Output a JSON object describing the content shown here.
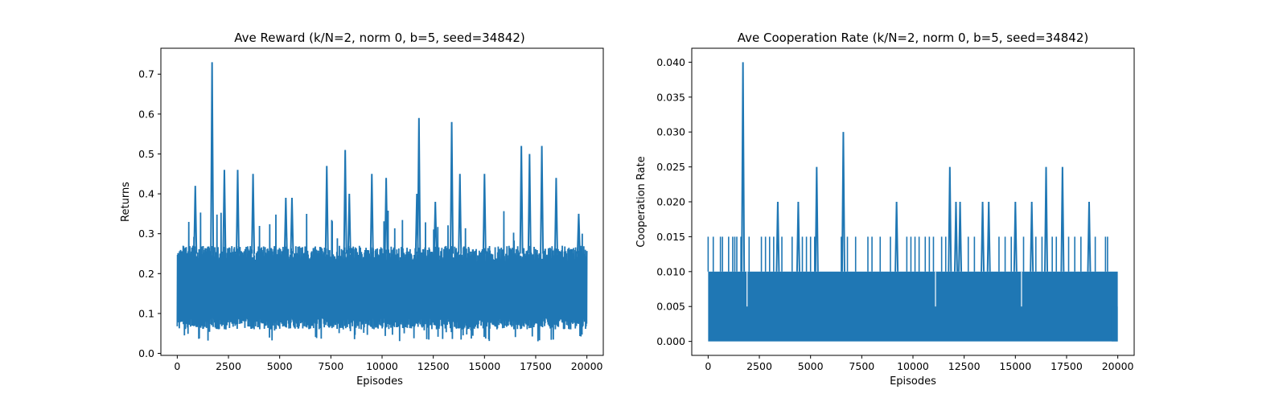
{
  "chart_data": [
    {
      "type": "line",
      "title": "Ave Reward (k/N=2, norm 0, b=5, seed=34842)",
      "xlabel": "Episodes",
      "ylabel": "Returns",
      "xlim": [
        -800,
        20800
      ],
      "ylim": [
        -0.005,
        0.765
      ],
      "xticks": [
        0,
        2500,
        5000,
        7500,
        10000,
        12500,
        15000,
        17500,
        20000
      ],
      "yticks": [
        0.0,
        0.1,
        0.2,
        0.3,
        0.4,
        0.5,
        0.6,
        0.7
      ],
      "ytick_labels": [
        "0.0",
        "0.1",
        "0.2",
        "0.3",
        "0.4",
        "0.5",
        "0.6",
        "0.7"
      ],
      "series_color": "#1f77b4",
      "n_points": 20000,
      "band": {
        "typical_low": 0.09,
        "typical_high": 0.24,
        "min": 0.03,
        "ceiling_mean": 0.25
      },
      "peaks": [
        {
          "x": 880,
          "y": 0.42
        },
        {
          "x": 1700,
          "y": 0.73
        },
        {
          "x": 2300,
          "y": 0.46
        },
        {
          "x": 2950,
          "y": 0.46
        },
        {
          "x": 3700,
          "y": 0.45
        },
        {
          "x": 5300,
          "y": 0.39
        },
        {
          "x": 5600,
          "y": 0.39
        },
        {
          "x": 7300,
          "y": 0.47
        },
        {
          "x": 8200,
          "y": 0.51
        },
        {
          "x": 8400,
          "y": 0.4
        },
        {
          "x": 9500,
          "y": 0.45
        },
        {
          "x": 10200,
          "y": 0.44
        },
        {
          "x": 11700,
          "y": 0.4
        },
        {
          "x": 11800,
          "y": 0.59
        },
        {
          "x": 12600,
          "y": 0.38
        },
        {
          "x": 13400,
          "y": 0.58
        },
        {
          "x": 13800,
          "y": 0.45
        },
        {
          "x": 15000,
          "y": 0.45
        },
        {
          "x": 16800,
          "y": 0.52
        },
        {
          "x": 17200,
          "y": 0.5
        },
        {
          "x": 17800,
          "y": 0.52
        },
        {
          "x": 18500,
          "y": 0.44
        },
        {
          "x": 19600,
          "y": 0.35
        }
      ]
    },
    {
      "type": "line",
      "title": "Ave Cooperation Rate (k/N=2, norm 0, b=5, seed=34842)",
      "xlabel": "Episodes",
      "ylabel": "Cooperation Rate",
      "xlim": [
        -800,
        20800
      ],
      "ylim": [
        -0.002,
        0.042
      ],
      "xticks": [
        0,
        2500,
        5000,
        7500,
        10000,
        12500,
        15000,
        17500,
        20000
      ],
      "yticks": [
        0.0,
        0.005,
        0.01,
        0.015,
        0.02,
        0.025,
        0.03,
        0.035,
        0.04
      ],
      "ytick_labels": [
        "0.000",
        "0.005",
        "0.010",
        "0.015",
        "0.020",
        "0.025",
        "0.030",
        "0.035",
        "0.040"
      ],
      "series_color": "#1f77b4",
      "n_points": 20000,
      "band": {
        "typical_low": 0.0,
        "typical_high": 0.01
      },
      "peaks": [
        {
          "x": 1700,
          "y": 0.04
        },
        {
          "x": 3400,
          "y": 0.02
        },
        {
          "x": 4400,
          "y": 0.02
        },
        {
          "x": 5300,
          "y": 0.025
        },
        {
          "x": 6600,
          "y": 0.03
        },
        {
          "x": 9200,
          "y": 0.02
        },
        {
          "x": 11800,
          "y": 0.025
        },
        {
          "x": 12100,
          "y": 0.02
        },
        {
          "x": 12300,
          "y": 0.02
        },
        {
          "x": 13400,
          "y": 0.02
        },
        {
          "x": 13700,
          "y": 0.02
        },
        {
          "x": 15000,
          "y": 0.02
        },
        {
          "x": 15800,
          "y": 0.02
        },
        {
          "x": 16500,
          "y": 0.025
        },
        {
          "x": 17300,
          "y": 0.025
        },
        {
          "x": 18600,
          "y": 0.02
        }
      ],
      "small_peaks_value": 0.015,
      "small_peaks_x": [
        0,
        250,
        600,
        700,
        1000,
        1200,
        1300,
        1400,
        1600,
        2000,
        2600,
        2800,
        3000,
        3200,
        3600,
        4100,
        4600,
        4800,
        5000,
        5200,
        6500,
        6800,
        7200,
        7800,
        8000,
        8400,
        8900,
        9700,
        9900,
        10100,
        10300,
        10600,
        10800,
        11000,
        11400,
        11600,
        12700,
        13000,
        14200,
        14500,
        14800,
        15400,
        16000,
        16300,
        16800,
        17000,
        17600,
        17900,
        18200,
        18900,
        19400,
        19500
      ]
    }
  ]
}
